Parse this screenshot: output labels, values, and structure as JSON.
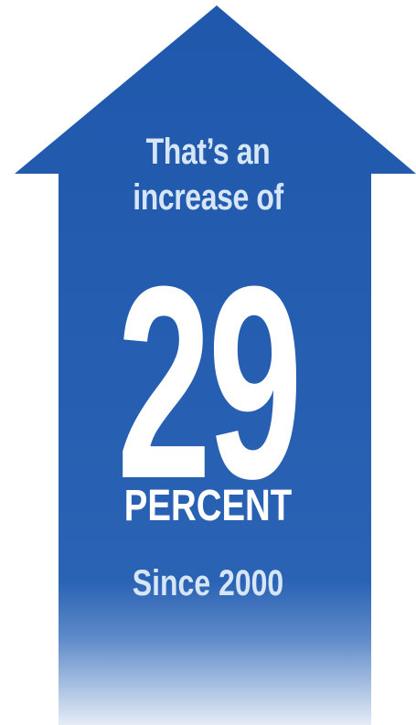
{
  "colors": {
    "arrow_fill": "#1f58ac",
    "arrow_fade_end": "#e4ecf6",
    "intro_text": "#d6e6f7",
    "number_text": "#ffffff",
    "background": "#ffffff"
  },
  "arrow": {
    "icon": "up-arrow-icon"
  },
  "stat": {
    "intro_line_1": "That’s an",
    "intro_line_2": "increase of",
    "value": "29",
    "unit": "PERCENT",
    "since": "Since 2000"
  }
}
